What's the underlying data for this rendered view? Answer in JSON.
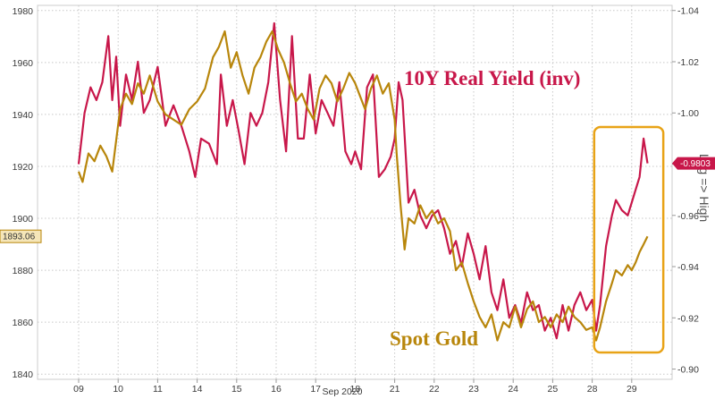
{
  "chart_data": {
    "type": "line",
    "title": "",
    "xlabel": "Sep 2020",
    "x_ticks": [
      "09",
      "10",
      "11",
      "14",
      "15",
      "16",
      "17",
      "18",
      "21",
      "22",
      "23",
      "24",
      "25",
      "28",
      "29"
    ],
    "y_left": {
      "ticks": [
        1840,
        1860,
        1880,
        1900,
        1920,
        1940,
        1960,
        1980
      ],
      "range": [
        1838,
        1982
      ]
    },
    "y_right": {
      "label": "Log => High",
      "ticks": [
        "-0.90",
        "-0.92",
        "-0.94",
        "-0.96",
        "-0.98",
        "-1.00",
        "-1.02",
        "-1.04"
      ],
      "range": [
        -0.896,
        -1.042
      ],
      "inverted": true
    },
    "grid": true,
    "series": [
      {
        "name": "10Y Real Yield (inv)",
        "color": "#c8174a",
        "axis": "right",
        "last_value_label": "-0.9803",
        "points": [
          [
            0.0,
            -0.98
          ],
          [
            0.15,
            -1.0
          ],
          [
            0.3,
            -1.01
          ],
          [
            0.45,
            -1.005
          ],
          [
            0.6,
            -1.012
          ],
          [
            0.75,
            -1.03
          ],
          [
            0.85,
            -1.005
          ],
          [
            0.95,
            -1.022
          ],
          [
            1.05,
            -0.995
          ],
          [
            1.2,
            -1.015
          ],
          [
            1.35,
            -1.005
          ],
          [
            1.5,
            -1.02
          ],
          [
            1.65,
            -1.0
          ],
          [
            1.8,
            -1.005
          ],
          [
            2.0,
            -1.018
          ],
          [
            2.2,
            -0.995
          ],
          [
            2.4,
            -1.003
          ],
          [
            2.6,
            -0.995
          ],
          [
            2.8,
            -0.985
          ],
          [
            2.95,
            -0.975
          ],
          [
            3.1,
            -0.99
          ],
          [
            3.3,
            -0.988
          ],
          [
            3.5,
            -0.98
          ],
          [
            3.6,
            -1.015
          ],
          [
            3.75,
            -0.995
          ],
          [
            3.9,
            -1.005
          ],
          [
            4.05,
            -0.993
          ],
          [
            4.2,
            -0.98
          ],
          [
            4.35,
            -1.0
          ],
          [
            4.5,
            -0.995
          ],
          [
            4.65,
            -1.0
          ],
          [
            4.8,
            -1.012
          ],
          [
            4.95,
            -1.035
          ],
          [
            5.1,
            -1.005
          ],
          [
            5.25,
            -0.985
          ],
          [
            5.4,
            -1.03
          ],
          [
            5.55,
            -0.99
          ],
          [
            5.7,
            -0.99
          ],
          [
            5.85,
            -1.015
          ],
          [
            6.0,
            -0.992
          ],
          [
            6.15,
            -1.005
          ],
          [
            6.3,
            -1.0
          ],
          [
            6.45,
            -0.995
          ],
          [
            6.6,
            -1.012
          ],
          [
            6.75,
            -0.985
          ],
          [
            6.9,
            -0.98
          ],
          [
            7.0,
            -0.985
          ],
          [
            7.15,
            -0.978
          ],
          [
            7.3,
            -1.01
          ],
          [
            7.45,
            -1.015
          ],
          [
            7.6,
            -0.975
          ],
          [
            7.75,
            -0.978
          ],
          [
            7.9,
            -0.983
          ],
          [
            8.0,
            -0.99
          ],
          [
            8.1,
            -1.012
          ],
          [
            8.2,
            -1.005
          ],
          [
            8.35,
            -0.965
          ],
          [
            8.5,
            -0.97
          ],
          [
            8.65,
            -0.96
          ],
          [
            8.8,
            -0.955
          ],
          [
            8.95,
            -0.96
          ],
          [
            9.1,
            -0.962
          ],
          [
            9.25,
            -0.955
          ],
          [
            9.4,
            -0.945
          ],
          [
            9.55,
            -0.95
          ],
          [
            9.7,
            -0.94
          ],
          [
            9.85,
            -0.953
          ],
          [
            10.0,
            -0.945
          ],
          [
            10.15,
            -0.935
          ],
          [
            10.3,
            -0.948
          ],
          [
            10.45,
            -0.93
          ],
          [
            10.6,
            -0.923
          ],
          [
            10.75,
            -0.935
          ],
          [
            10.9,
            -0.92
          ],
          [
            11.05,
            -0.925
          ],
          [
            11.2,
            -0.918
          ],
          [
            11.35,
            -0.93
          ],
          [
            11.5,
            -0.923
          ],
          [
            11.65,
            -0.925
          ],
          [
            11.8,
            -0.915
          ],
          [
            11.95,
            -0.92
          ],
          [
            12.1,
            -0.912
          ],
          [
            12.25,
            -0.925
          ],
          [
            12.4,
            -0.915
          ],
          [
            12.55,
            -0.925
          ],
          [
            12.7,
            -0.93
          ],
          [
            12.85,
            -0.923
          ],
          [
            13.0,
            -0.927
          ],
          [
            13.1,
            -0.915
          ],
          [
            13.2,
            -0.925
          ],
          [
            13.35,
            -0.948
          ],
          [
            13.5,
            -0.96
          ],
          [
            13.6,
            -0.966
          ],
          [
            13.75,
            -0.962
          ],
          [
            13.9,
            -0.96
          ],
          [
            14.0,
            -0.965
          ],
          [
            14.1,
            -0.97
          ],
          [
            14.2,
            -0.975
          ],
          [
            14.3,
            -0.99
          ],
          [
            14.4,
            -0.9803
          ]
        ]
      },
      {
        "name": "Spot Gold",
        "color": "#b8860b",
        "axis": "left",
        "last_value_label": "1893.06",
        "points": [
          [
            0.0,
            1918
          ],
          [
            0.1,
            1914
          ],
          [
            0.25,
            1925
          ],
          [
            0.4,
            1922
          ],
          [
            0.55,
            1928
          ],
          [
            0.7,
            1924
          ],
          [
            0.85,
            1918
          ],
          [
            0.95,
            1930
          ],
          [
            1.05,
            1942
          ],
          [
            1.2,
            1948
          ],
          [
            1.35,
            1944
          ],
          [
            1.5,
            1952
          ],
          [
            1.65,
            1948
          ],
          [
            1.8,
            1955
          ],
          [
            2.0,
            1945
          ],
          [
            2.2,
            1940
          ],
          [
            2.4,
            1938
          ],
          [
            2.6,
            1936
          ],
          [
            2.8,
            1942
          ],
          [
            3.0,
            1945
          ],
          [
            3.2,
            1950
          ],
          [
            3.4,
            1962
          ],
          [
            3.55,
            1966
          ],
          [
            3.7,
            1972
          ],
          [
            3.85,
            1958
          ],
          [
            4.0,
            1964
          ],
          [
            4.15,
            1955
          ],
          [
            4.3,
            1948
          ],
          [
            4.45,
            1958
          ],
          [
            4.6,
            1962
          ],
          [
            4.75,
            1968
          ],
          [
            4.9,
            1972
          ],
          [
            5.05,
            1965
          ],
          [
            5.2,
            1960
          ],
          [
            5.35,
            1952
          ],
          [
            5.5,
            1945
          ],
          [
            5.65,
            1948
          ],
          [
            5.8,
            1942
          ],
          [
            5.95,
            1938
          ],
          [
            6.1,
            1950
          ],
          [
            6.25,
            1955
          ],
          [
            6.4,
            1952
          ],
          [
            6.55,
            1945
          ],
          [
            6.7,
            1950
          ],
          [
            6.85,
            1956
          ],
          [
            7.0,
            1952
          ],
          [
            7.1,
            1948
          ],
          [
            7.25,
            1942
          ],
          [
            7.4,
            1950
          ],
          [
            7.55,
            1955
          ],
          [
            7.7,
            1948
          ],
          [
            7.85,
            1952
          ],
          [
            8.0,
            1938
          ],
          [
            8.05,
            1925
          ],
          [
            8.15,
            1905
          ],
          [
            8.25,
            1888
          ],
          [
            8.35,
            1900
          ],
          [
            8.5,
            1898
          ],
          [
            8.65,
            1905
          ],
          [
            8.8,
            1900
          ],
          [
            8.95,
            1903
          ],
          [
            9.1,
            1898
          ],
          [
            9.25,
            1900
          ],
          [
            9.4,
            1895
          ],
          [
            9.55,
            1880
          ],
          [
            9.7,
            1883
          ],
          [
            9.85,
            1875
          ],
          [
            10.0,
            1868
          ],
          [
            10.15,
            1862
          ],
          [
            10.3,
            1858
          ],
          [
            10.45,
            1863
          ],
          [
            10.6,
            1853
          ],
          [
            10.75,
            1860
          ],
          [
            10.9,
            1858
          ],
          [
            11.05,
            1866
          ],
          [
            11.2,
            1858
          ],
          [
            11.35,
            1865
          ],
          [
            11.5,
            1868
          ],
          [
            11.65,
            1860
          ],
          [
            11.8,
            1862
          ],
          [
            11.95,
            1858
          ],
          [
            12.1,
            1863
          ],
          [
            12.25,
            1860
          ],
          [
            12.4,
            1866
          ],
          [
            12.55,
            1862
          ],
          [
            12.7,
            1860
          ],
          [
            12.85,
            1857
          ],
          [
            13.0,
            1858
          ],
          [
            13.1,
            1853
          ],
          [
            13.2,
            1858
          ],
          [
            13.35,
            1868
          ],
          [
            13.5,
            1875
          ],
          [
            13.6,
            1880
          ],
          [
            13.75,
            1878
          ],
          [
            13.9,
            1882
          ],
          [
            14.0,
            1880
          ],
          [
            14.1,
            1883
          ],
          [
            14.2,
            1887
          ],
          [
            14.3,
            1890
          ],
          [
            14.4,
            1893.06
          ]
        ]
      }
    ],
    "annotations": [
      {
        "kind": "highlight-box",
        "color": "#e8a317",
        "x_from": 13.05,
        "x_to": 14.8
      }
    ]
  },
  "labels": {
    "real_yield": "10Y Real Yield (inv)",
    "spot_gold": "Spot Gold"
  }
}
